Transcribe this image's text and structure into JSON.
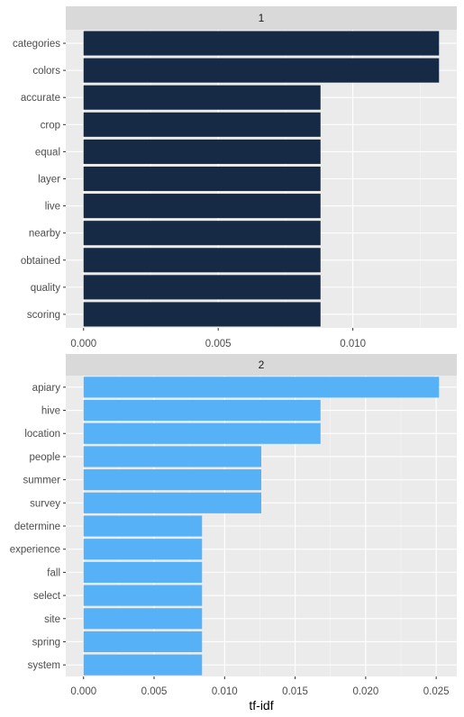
{
  "chart_data": [
    {
      "type": "bar",
      "orientation": "horizontal",
      "panel_label": "1",
      "categories": [
        "categories",
        "colors",
        "accurate",
        "crop",
        "equal",
        "layer",
        "live",
        "nearby",
        "obtained",
        "quality",
        "scoring"
      ],
      "values": [
        0.0132,
        0.0132,
        0.0088,
        0.0088,
        0.0088,
        0.0088,
        0.0088,
        0.0088,
        0.0088,
        0.0088,
        0.0088
      ],
      "x_ticks": [
        "0.000",
        "0.005",
        "0.010"
      ],
      "x_tick_values": [
        0,
        0.005,
        0.01
      ],
      "xlim": [
        -0.00066,
        0.01386
      ],
      "bar_color": "#162A45",
      "grid": true
    },
    {
      "type": "bar",
      "orientation": "horizontal",
      "panel_label": "2",
      "categories": [
        "apiary",
        "hive",
        "location",
        "people",
        "summer",
        "survey",
        "determine",
        "experience",
        "fall",
        "select",
        "site",
        "spring",
        "system"
      ],
      "values": [
        0.0252,
        0.0168,
        0.0168,
        0.0126,
        0.0126,
        0.0126,
        0.0084,
        0.0084,
        0.0084,
        0.0084,
        0.0084,
        0.0084,
        0.0084
      ],
      "x_ticks": [
        "0.000",
        "0.005",
        "0.010",
        "0.015",
        "0.020",
        "0.025"
      ],
      "x_tick_values": [
        0,
        0.005,
        0.01,
        0.015,
        0.02,
        0.025
      ],
      "xlim": [
        -0.00126,
        0.02646
      ],
      "bar_color": "#56B1F7",
      "grid": true
    }
  ],
  "shared_xlabel": "tf-idf",
  "colors": {
    "panel_background": "#EBEBEB",
    "strip_background": "#D9D9D9",
    "grid_major": "#FFFFFF",
    "tick_text": "#4D4D4D"
  }
}
